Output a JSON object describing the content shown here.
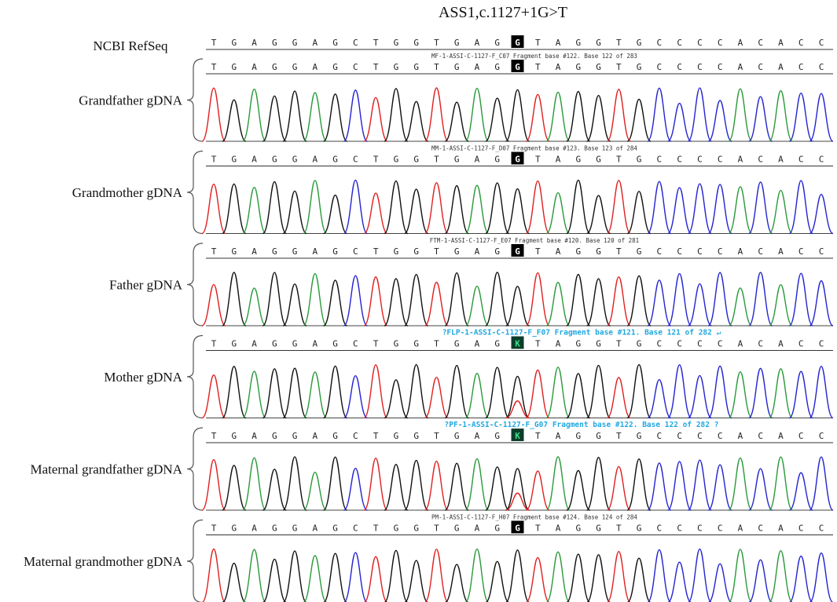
{
  "title": "ASS1,c.1127+1G>T",
  "reference": {
    "label": "NCBI RefSeq",
    "sequence": [
      "T",
      "G",
      "A",
      "G",
      "G",
      "A",
      "G",
      "C",
      "T",
      "G",
      "G",
      "T",
      "G",
      "A",
      "G",
      "G",
      "T",
      "A",
      "G",
      "G",
      "T",
      "G",
      "C",
      "C",
      "C",
      "C",
      "A",
      "C",
      "A",
      "C",
      "C"
    ],
    "highlight_index": 15
  },
  "panels": [
    {
      "label": "Grandfather gDNA",
      "header": "MF-1-ASSI-C-1127-F_C07 Fragment base #122. Base 122 of 283",
      "header_style": "normal",
      "sequence": [
        "T",
        "G",
        "A",
        "G",
        "G",
        "A",
        "G",
        "C",
        "T",
        "G",
        "G",
        "T",
        "G",
        "A",
        "G",
        "G",
        "T",
        "A",
        "G",
        "G",
        "T",
        "G",
        "C",
        "C",
        "C",
        "C",
        "A",
        "C",
        "A",
        "C",
        "C"
      ],
      "highlight_index": 15,
      "heterozygous": false
    },
    {
      "label": "Grandmother gDNA",
      "header": "MM-1-ASSI-C-1127-F_D07 Fragment base #123. Base 123 of 284",
      "header_style": "normal",
      "sequence": [
        "T",
        "G",
        "A",
        "G",
        "G",
        "A",
        "G",
        "C",
        "T",
        "G",
        "G",
        "T",
        "G",
        "A",
        "G",
        "G",
        "T",
        "A",
        "G",
        "G",
        "T",
        "G",
        "C",
        "C",
        "C",
        "C",
        "A",
        "C",
        "A",
        "C",
        "C"
      ],
      "highlight_index": 15,
      "heterozygous": false
    },
    {
      "label": "Father gDNA",
      "header": "FTM-1-ASSI-C-1127-F_E07 Fragment base #120. Base 120 of 281",
      "header_style": "normal",
      "sequence": [
        "T",
        "G",
        "A",
        "G",
        "G",
        "A",
        "G",
        "C",
        "T",
        "G",
        "G",
        "T",
        "G",
        "A",
        "G",
        "G",
        "T",
        "A",
        "G",
        "G",
        "T",
        "G",
        "C",
        "C",
        "C",
        "C",
        "A",
        "C",
        "A",
        "C",
        "C"
      ],
      "highlight_index": 15,
      "heterozygous": false
    },
    {
      "label": "Mother gDNA",
      "header": "?FLP-1-ASSI-C-1127-F_F07 Fragment base #121. Base 121 of 282 ↵",
      "header_style": "highlight",
      "sequence": [
        "T",
        "G",
        "A",
        "G",
        "G",
        "A",
        "G",
        "C",
        "T",
        "G",
        "G",
        "T",
        "G",
        "A",
        "G",
        "K",
        "T",
        "A",
        "G",
        "G",
        "T",
        "G",
        "C",
        "C",
        "C",
        "C",
        "A",
        "C",
        "A",
        "C",
        "C"
      ],
      "highlight_index": 15,
      "heterozygous": true
    },
    {
      "label": "Maternal grandfather gDNA",
      "header": "?PF-1-ASSI-C-1127-F_G07 Fragment base #122. Base 122 of 282 ?",
      "header_style": "highlight",
      "sequence": [
        "T",
        "G",
        "A",
        "G",
        "G",
        "A",
        "G",
        "C",
        "T",
        "G",
        "G",
        "T",
        "G",
        "A",
        "G",
        "K",
        "T",
        "A",
        "G",
        "G",
        "T",
        "G",
        "C",
        "C",
        "C",
        "C",
        "A",
        "C",
        "A",
        "C",
        "C"
      ],
      "highlight_index": 15,
      "heterozygous": true
    },
    {
      "label": "Maternal grandmother gDNA",
      "header": "PM-1-ASSI-C-1127-F_H07 Fragment base #124. Base 124 of 284",
      "header_style": "normal",
      "sequence": [
        "T",
        "G",
        "A",
        "G",
        "G",
        "A",
        "G",
        "C",
        "T",
        "G",
        "G",
        "T",
        "G",
        "A",
        "G",
        "G",
        "T",
        "A",
        "G",
        "G",
        "T",
        "G",
        "C",
        "C",
        "C",
        "C",
        "A",
        "C",
        "A",
        "C",
        "C"
      ],
      "highlight_index": 15,
      "heterozygous": false
    }
  ],
  "colors": {
    "A": "#2a9a3a",
    "C": "#2424d0",
    "G": "#111111",
    "T": "#e02020",
    "header_highlight": "#22a8e0",
    "het_cell_bg": "#0b3d2a",
    "het_cell_text": "#3ee08a",
    "ref_cell_bg": "#000000",
    "ref_cell_text": "#ffffff"
  }
}
